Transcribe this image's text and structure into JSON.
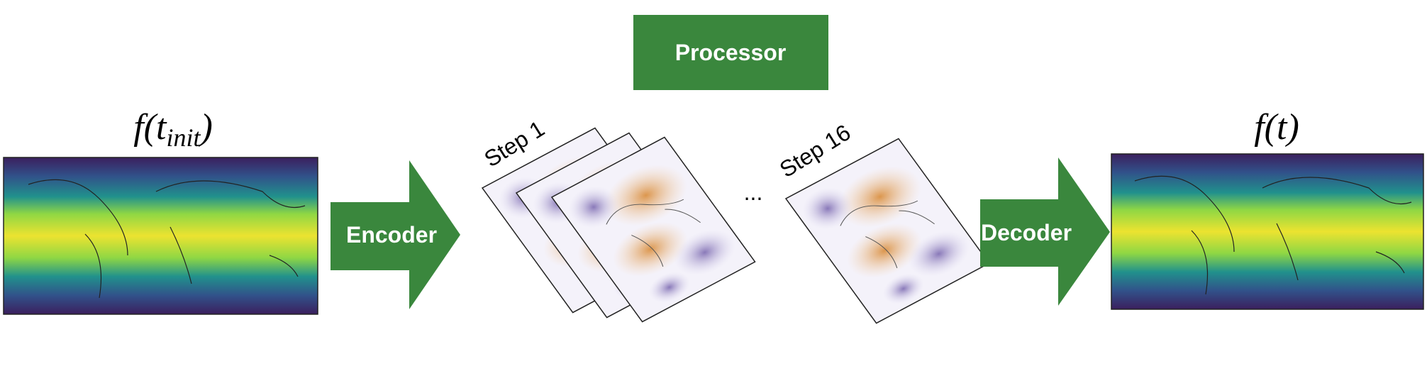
{
  "input": {
    "label": {
      "open": "f(t",
      "subscript": "init",
      "close": ")"
    }
  },
  "encoder": {
    "label": "Encoder"
  },
  "processor": {
    "label": "Processor",
    "steps": [
      {
        "label": "Step 1"
      },
      {
        "label": "Step 16"
      }
    ],
    "ellipsis": "..."
  },
  "decoder": {
    "label": "Decoder"
  },
  "output": {
    "label": "f(t)"
  }
}
